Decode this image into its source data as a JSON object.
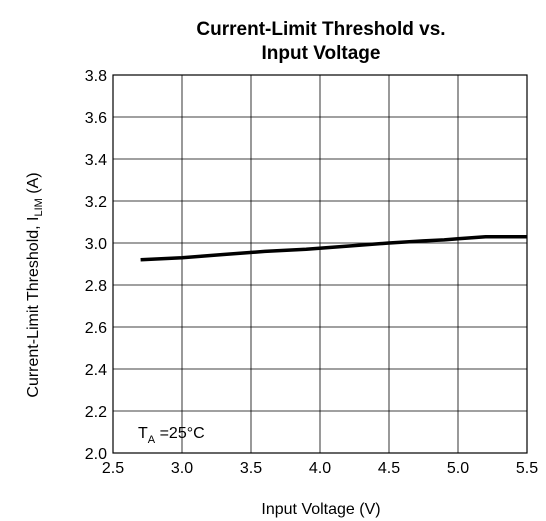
{
  "chart_data": {
    "type": "line",
    "title": "Current-Limit Threshold vs. Input Voltage",
    "title_lines": [
      "Current-Limit Threshold vs.",
      "Input Voltage"
    ],
    "xlabel": "Input Voltage (V)",
    "ylabel": {
      "main": "Current-Limit Threshold, I",
      "sub": "LIM",
      "unit": " (A)"
    },
    "xlim": [
      2.5,
      5.5
    ],
    "ylim": [
      2.0,
      3.8
    ],
    "xticks": [
      "2.5",
      "3.0",
      "3.5",
      "4.0",
      "4.5",
      "5.0",
      "5.5"
    ],
    "yticks": [
      "2.0",
      "2.2",
      "2.4",
      "2.6",
      "2.8",
      "3.0",
      "3.2",
      "3.4",
      "3.6",
      "3.8"
    ],
    "grid": true,
    "annotation": {
      "main": "T",
      "sub": "A",
      "rest": " =25°C"
    },
    "series": [
      {
        "color": "#000000",
        "x": [
          2.7,
          3.0,
          3.3,
          3.6,
          3.9,
          4.2,
          4.5,
          4.75,
          4.9,
          5.0,
          5.1,
          5.2,
          5.5
        ],
        "y": [
          2.92,
          2.93,
          2.945,
          2.96,
          2.97,
          2.985,
          3.0,
          3.01,
          3.015,
          3.02,
          3.025,
          3.03,
          3.03
        ]
      }
    ]
  }
}
